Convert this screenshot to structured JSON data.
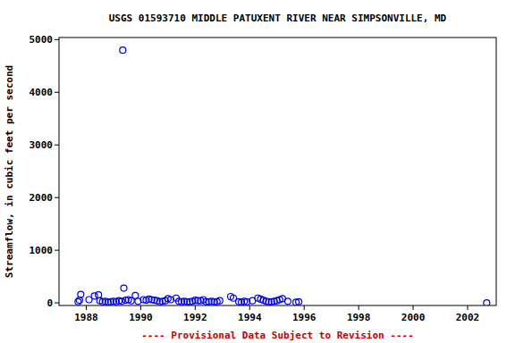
{
  "chart_data": {
    "type": "scatter",
    "title": "USGS 01593710 MIDDLE PATUXENT RIVER NEAR SIMPSONVILLE, MD",
    "y_label": "Streamflow, in cubic feet per second",
    "annotations": [
      "---- Provisional Data Subject to Revision ----"
    ],
    "x": [
      1987.7,
      1987.75,
      1987.8,
      1988.1,
      1988.3,
      1988.45,
      1988.5,
      1988.6,
      1988.7,
      1988.8,
      1988.9,
      1989.0,
      1989.1,
      1989.2,
      1989.3,
      1989.34,
      1989.38,
      1989.45,
      1989.55,
      1989.65,
      1989.8,
      1989.9,
      1990.1,
      1990.2,
      1990.3,
      1990.4,
      1990.5,
      1990.6,
      1990.7,
      1990.8,
      1990.9,
      1991.0,
      1991.1,
      1991.3,
      1991.4,
      1991.5,
      1991.6,
      1991.7,
      1991.8,
      1991.9,
      1992.0,
      1992.1,
      1992.2,
      1992.3,
      1992.4,
      1992.5,
      1992.6,
      1992.7,
      1992.8,
      1992.9,
      1993.3,
      1993.4,
      1993.6,
      1993.7,
      1993.8,
      1993.9,
      1994.1,
      1994.3,
      1994.4,
      1994.5,
      1994.6,
      1994.7,
      1994.8,
      1994.9,
      1995.0,
      1995.1,
      1995.2,
      1995.4,
      1995.7,
      1995.8,
      2002.7
    ],
    "values": [
      20,
      50,
      160,
      60,
      130,
      150,
      40,
      20,
      30,
      10,
      20,
      30,
      20,
      40,
      30,
      4800,
      280,
      50,
      60,
      40,
      140,
      30,
      60,
      50,
      70,
      60,
      50,
      40,
      20,
      30,
      40,
      80,
      60,
      90,
      30,
      20,
      30,
      20,
      20,
      30,
      50,
      40,
      40,
      60,
      20,
      20,
      30,
      20,
      20,
      40,
      120,
      90,
      20,
      10,
      30,
      20,
      40,
      90,
      70,
      50,
      30,
      20,
      20,
      30,
      40,
      60,
      80,
      30,
      10,
      20,
      0
    ],
    "color": "#0000ff",
    "marker": "circle",
    "xlim": [
      1987.0,
      2003.05
    ],
    "xticks": [
      1988,
      1990,
      1992,
      1994,
      1996,
      1998,
      2000,
      2002
    ],
    "ylim": [
      -50,
      5040
    ],
    "yticks": [
      0,
      1000,
      2000,
      3000,
      4000,
      5000
    ],
    "grid": false
  }
}
